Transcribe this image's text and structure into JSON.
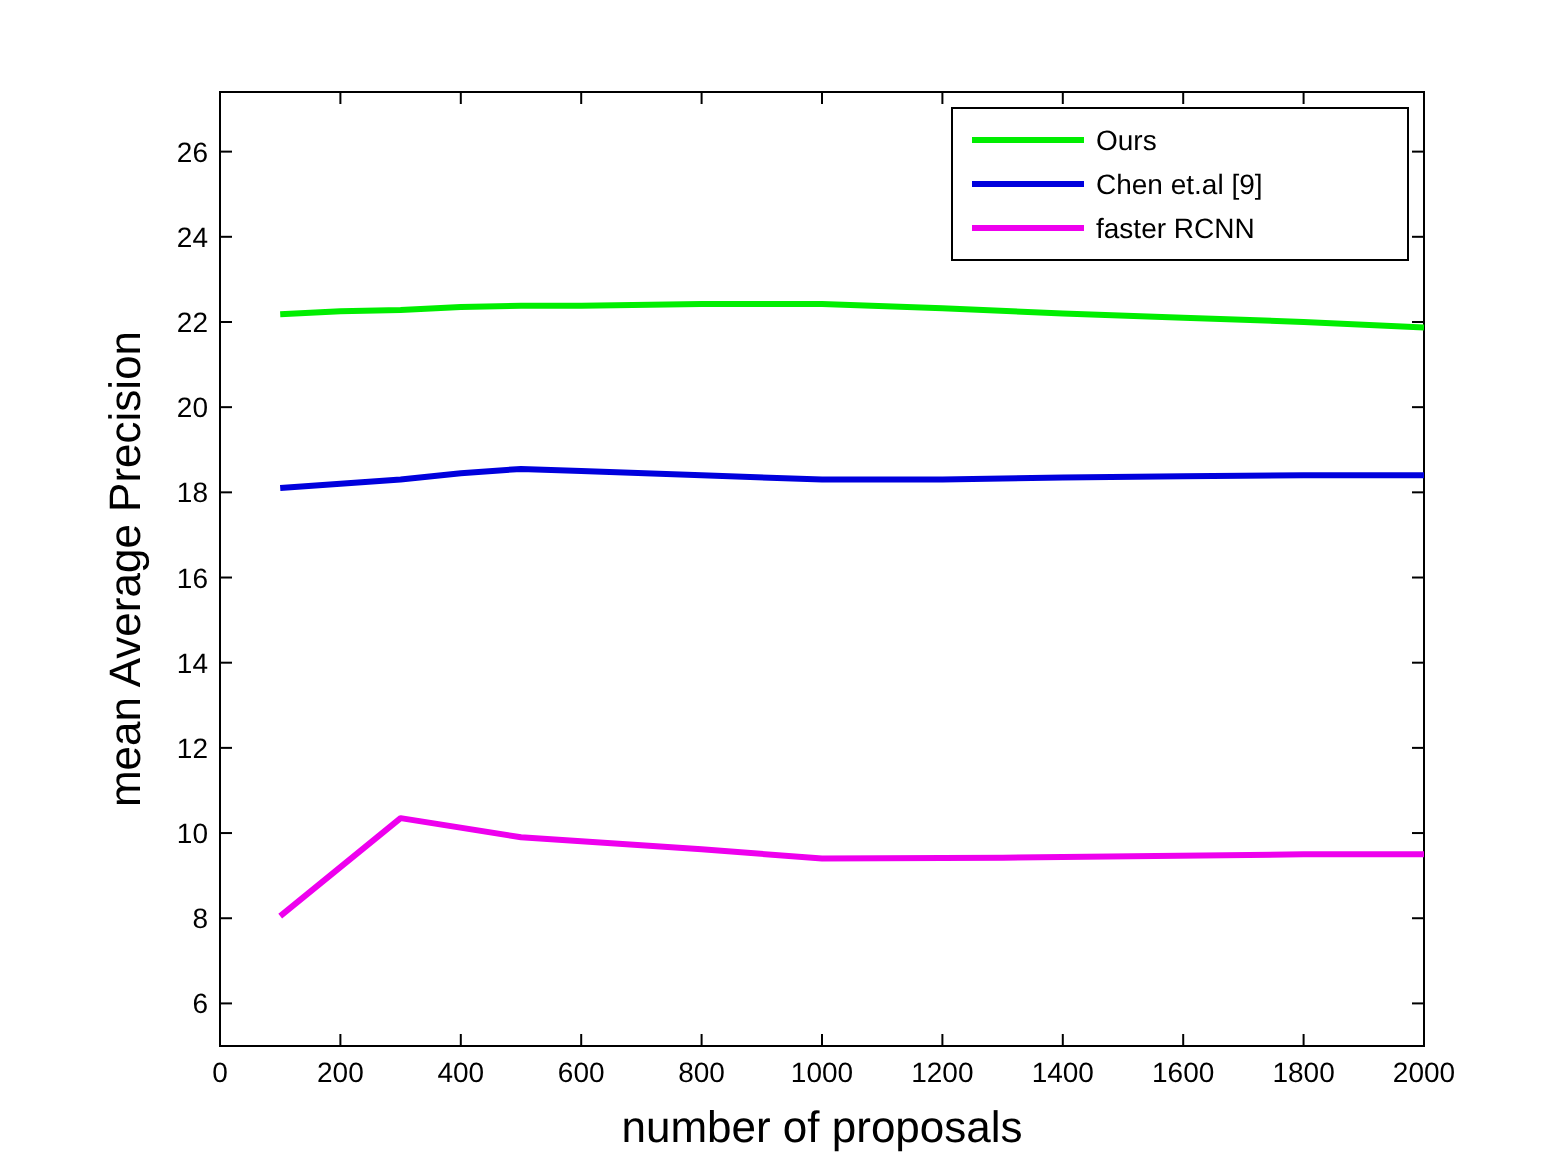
{
  "chart_data": {
    "type": "line",
    "xlabel": "number of proposals",
    "ylabel": "mean Average Precision",
    "xlim": [
      0,
      2000
    ],
    "xticks": [
      0,
      200,
      400,
      600,
      800,
      1000,
      1200,
      1400,
      1600,
      1800,
      2000
    ],
    "ylim": [
      5,
      27.4
    ],
    "yticks": [
      6,
      8,
      10,
      12,
      14,
      16,
      18,
      20,
      22,
      24,
      26
    ],
    "legend": "top right",
    "grid": false,
    "marker": "none",
    "line_style": "solid",
    "series": [
      {
        "name": "Ours",
        "color": "#00ee00",
        "x": [
          100,
          200,
          300,
          400,
          500,
          600,
          800,
          1000,
          1200,
          1400,
          1600,
          1800,
          2000
        ],
        "values": [
          22.18,
          22.25,
          22.28,
          22.35,
          22.38,
          22.38,
          22.42,
          22.42,
          22.32,
          22.2,
          22.1,
          22.0,
          21.87
        ]
      },
      {
        "name": "Chen et.al [9]",
        "color": "#0000dd",
        "x": [
          100,
          200,
          300,
          400,
          500,
          600,
          800,
          1000,
          1200,
          1400,
          1600,
          1800,
          2000
        ],
        "values": [
          18.1,
          18.2,
          18.3,
          18.45,
          18.55,
          18.5,
          18.4,
          18.3,
          18.3,
          18.35,
          18.38,
          18.4,
          18.4
        ]
      },
      {
        "name": "faster RCNN",
        "color": "#ee00ee",
        "x": [
          100,
          300,
          500,
          800,
          1000,
          1300,
          1800,
          2000
        ],
        "values": [
          8.05,
          10.35,
          9.9,
          9.62,
          9.4,
          9.42,
          9.5,
          9.5
        ]
      }
    ]
  }
}
